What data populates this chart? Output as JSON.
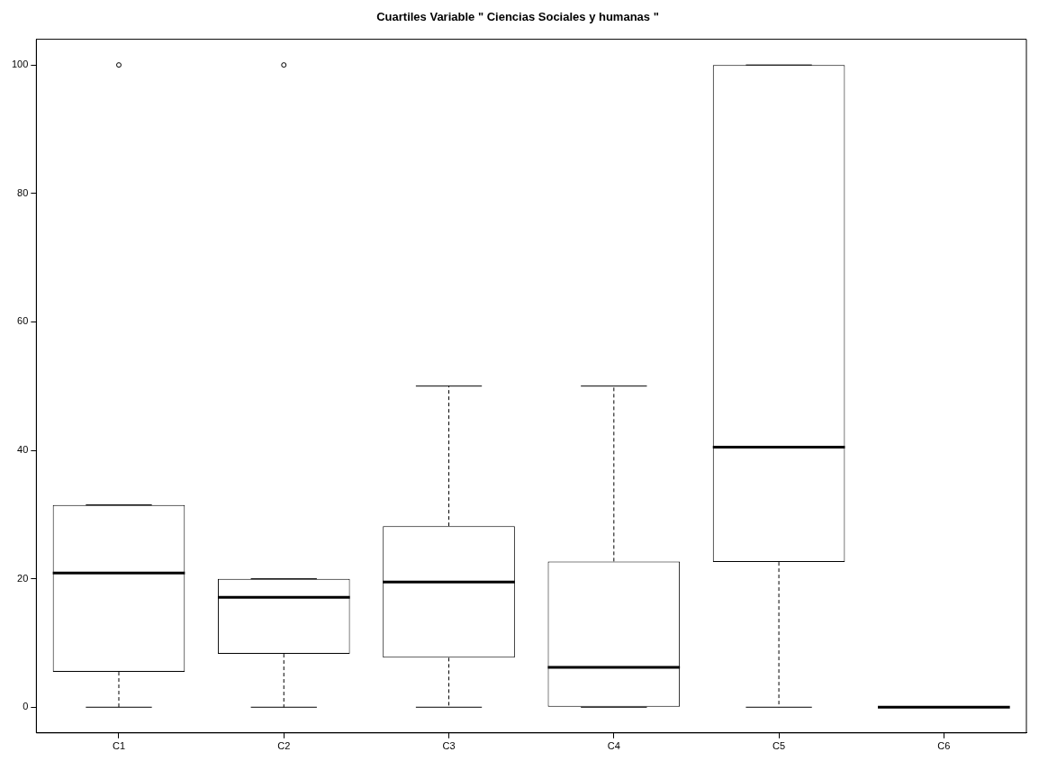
{
  "chart_data": {
    "type": "box",
    "title": "Cuartiles Variable \" Ciencias Sociales y humanas \"",
    "categories": [
      "C1",
      "C2",
      "C3",
      "C4",
      "C5",
      "C6"
    ],
    "boxes": [
      {
        "low": 0,
        "q1": 5.5,
        "median": 20.9,
        "q3": 31.5,
        "high": 31.5,
        "outliers": [
          100
        ]
      },
      {
        "low": 0,
        "q1": 8.3,
        "median": 17.1,
        "q3": 20,
        "high": 20,
        "outliers": [
          100
        ]
      },
      {
        "low": 0,
        "q1": 7.7,
        "median": 19.5,
        "q3": 28.2,
        "high": 50
      },
      {
        "low": 0,
        "q1": 0,
        "median": 6.2,
        "q3": 22.7,
        "high": 50
      },
      {
        "low": 0,
        "q1": 22.6,
        "median": 40.5,
        "q3": 100,
        "high": 100
      },
      {
        "low": 0,
        "q1": 0,
        "median": 0,
        "q3": 0,
        "high": 0
      }
    ],
    "color": "#000000",
    "ylim": [
      -4,
      104
    ],
    "yticks": [
      0,
      20,
      40,
      60,
      80,
      100
    ]
  }
}
